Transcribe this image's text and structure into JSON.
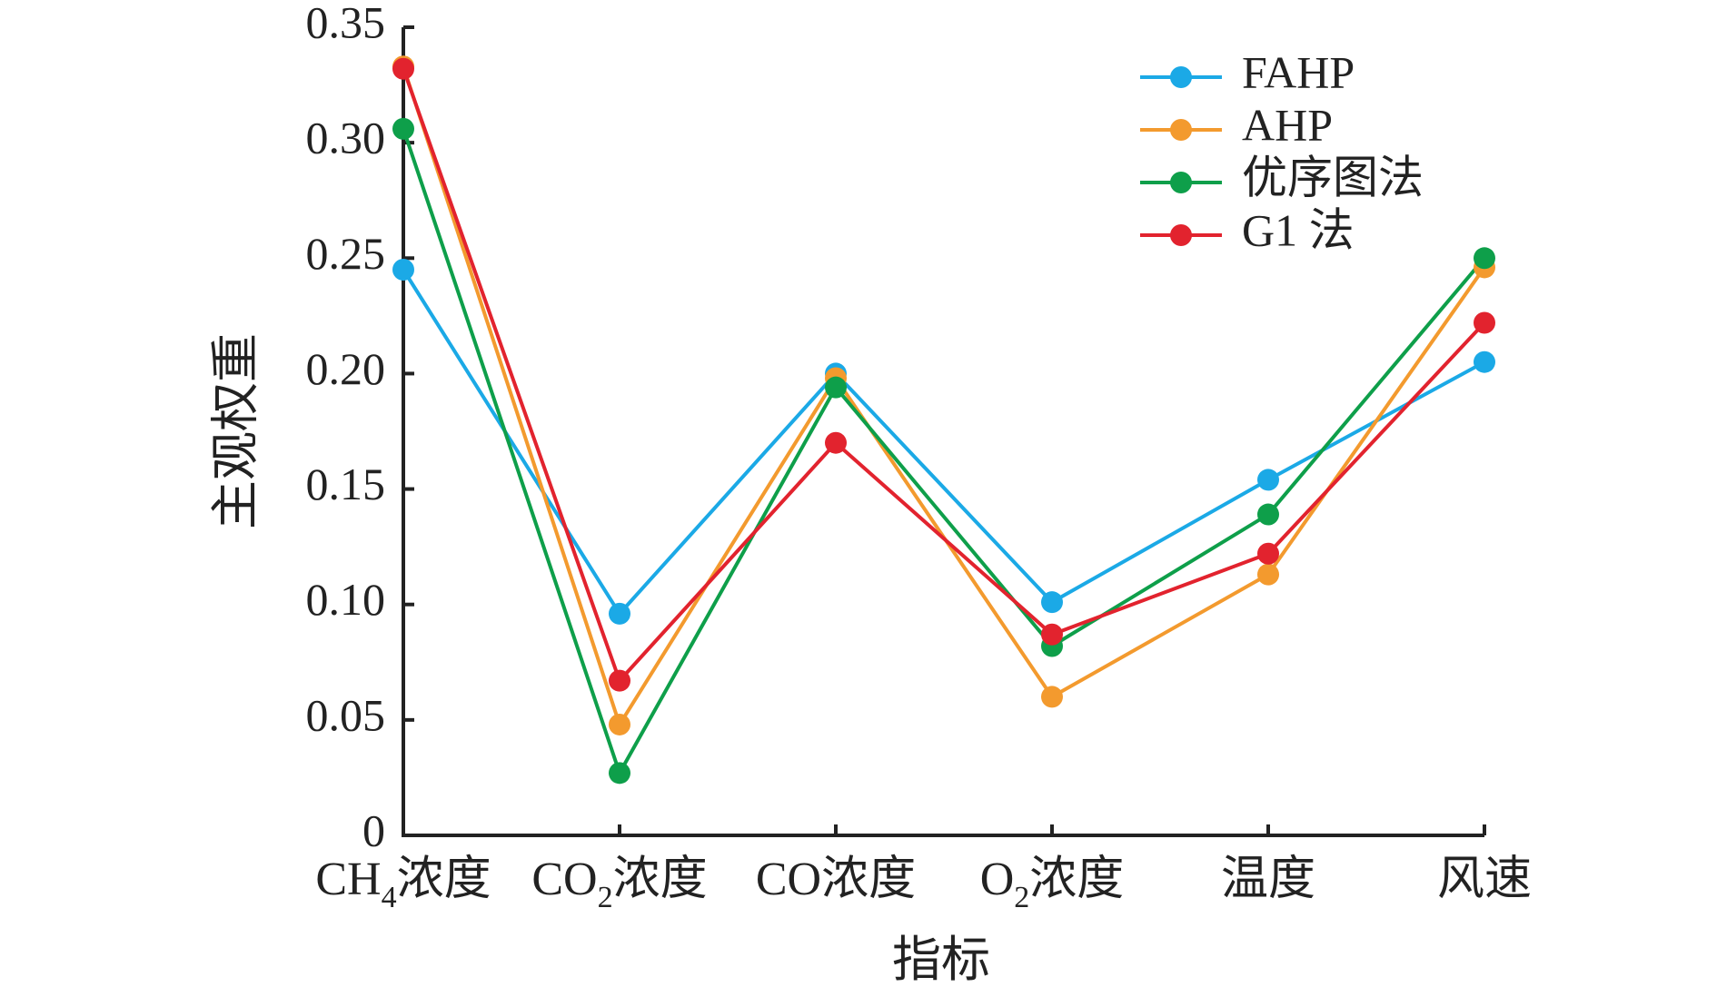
{
  "chart_data": {
    "type": "line",
    "title": "",
    "xlabel": "指标",
    "ylabel": "主观权重",
    "ylim": [
      0,
      0.35
    ],
    "yticks": [
      "0",
      "0.05",
      "0.10",
      "0.15",
      "0.20",
      "0.25",
      "0.30",
      "0.35"
    ],
    "categories": [
      {
        "main": "CH",
        "sub": "4",
        "tail": "浓度"
      },
      {
        "main": "CO",
        "sub": "2",
        "tail": "浓度"
      },
      {
        "main": "CO浓度",
        "sub": "",
        "tail": ""
      },
      {
        "main": "O",
        "sub": "2",
        "tail": "浓度"
      },
      {
        "main": "温度",
        "sub": "",
        "tail": ""
      },
      {
        "main": "风速",
        "sub": "",
        "tail": ""
      }
    ],
    "grid": false,
    "legend_position": "top-right",
    "series": [
      {
        "name": "FAHP",
        "color": "#1BA9E6",
        "values": [
          0.245,
          0.096,
          0.2,
          0.101,
          0.154,
          0.205
        ]
      },
      {
        "name": "AHP",
        "color": "#F39A2E",
        "values": [
          0.333,
          0.048,
          0.198,
          0.06,
          0.113,
          0.246
        ]
      },
      {
        "name": "优序图法",
        "color": "#0E9F4A",
        "values": [
          0.306,
          0.027,
          0.194,
          0.082,
          0.139,
          0.25
        ]
      },
      {
        "name": "G1 法",
        "color": "#E2232E",
        "values": [
          0.332,
          0.067,
          0.17,
          0.087,
          0.122,
          0.222
        ]
      }
    ]
  }
}
